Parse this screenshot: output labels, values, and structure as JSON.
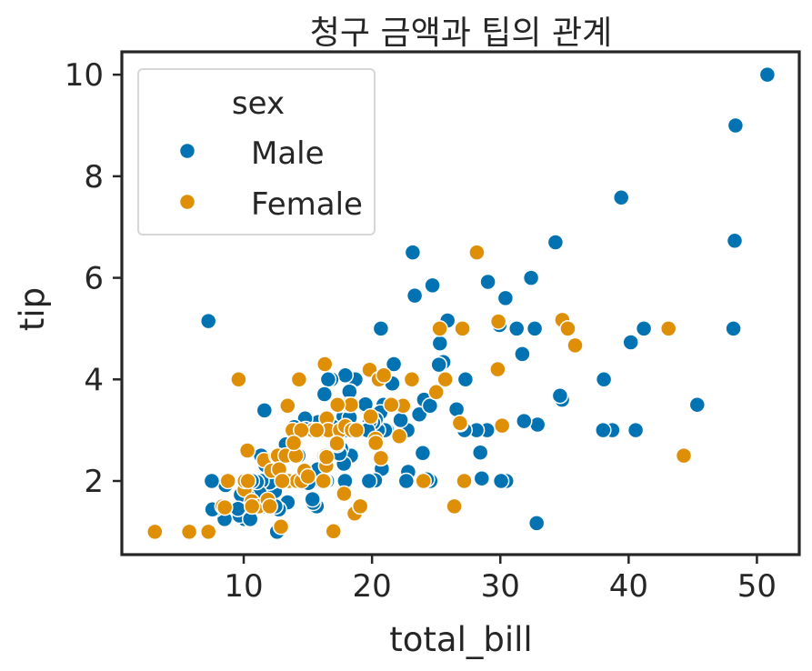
{
  "chart_data": {
    "type": "scatter",
    "title": "청구 금액과 팁의 관계",
    "xlabel": "total_bill",
    "ylabel": "tip",
    "xlim": [
      0.5,
      53.3
    ],
    "ylim": [
      0.55,
      10.45
    ],
    "xticks": [
      10,
      20,
      30,
      40,
      50
    ],
    "yticks": [
      2,
      4,
      6,
      8,
      10
    ],
    "grid": false,
    "legend": {
      "title": "sex",
      "placement": "top-left"
    },
    "series": [
      {
        "name": "Male",
        "color": "#0173b2",
        "points": [
          [
            7.25,
            5.15
          ],
          [
            50.81,
            10.0
          ],
          [
            48.27,
            6.73
          ],
          [
            48.17,
            5.0
          ],
          [
            48.33,
            9.0
          ],
          [
            45.35,
            3.5
          ],
          [
            44.3,
            2.5
          ],
          [
            43.11,
            5.0
          ],
          [
            41.19,
            5.0
          ],
          [
            40.55,
            3.0
          ],
          [
            40.17,
            4.73
          ],
          [
            39.42,
            7.58
          ],
          [
            38.73,
            3.0
          ],
          [
            38.07,
            4.0
          ],
          [
            38.01,
            3.0
          ],
          [
            34.81,
            3.6
          ],
          [
            34.65,
            3.68
          ],
          [
            34.3,
            6.7
          ],
          [
            32.83,
            1.17
          ],
          [
            32.9,
            3.11
          ],
          [
            32.68,
            5.0
          ],
          [
            32.4,
            6.0
          ],
          [
            31.85,
            3.18
          ],
          [
            31.71,
            4.5
          ],
          [
            31.27,
            5.0
          ],
          [
            30.4,
            5.6
          ],
          [
            30.46,
            2.0
          ],
          [
            30.06,
            2.0
          ],
          [
            29.93,
            5.07
          ],
          [
            29.8,
            4.2
          ],
          [
            29.03,
            5.92
          ],
          [
            28.97,
            3.0
          ],
          [
            28.55,
            2.05
          ],
          [
            28.44,
            2.56
          ],
          [
            28.15,
            3.0
          ],
          [
            27.28,
            4.0
          ],
          [
            27.2,
            3.0
          ],
          [
            26.59,
            3.41
          ],
          [
            25.89,
            5.16
          ],
          [
            25.56,
            4.34
          ],
          [
            25.29,
            4.71
          ],
          [
            25.21,
            4.29
          ],
          [
            25.0,
            3.75
          ],
          [
            24.71,
            5.85
          ],
          [
            24.55,
            2.0
          ],
          [
            24.27,
            2.03
          ],
          [
            24.06,
            3.6
          ],
          [
            23.95,
            2.55
          ],
          [
            23.68,
            3.31
          ],
          [
            23.33,
            5.65
          ],
          [
            23.17,
            6.5
          ],
          [
            22.82,
            2.18
          ],
          [
            22.76,
            3.0
          ],
          [
            22.67,
            2.0
          ],
          [
            22.49,
            3.5
          ],
          [
            21.5,
            3.5
          ],
          [
            21.58,
            3.92
          ],
          [
            21.16,
            3.0
          ],
          [
            21.01,
            3.0
          ],
          [
            20.9,
            3.5
          ],
          [
            20.92,
            4.08
          ],
          [
            20.76,
            2.24
          ],
          [
            20.69,
            5.0
          ],
          [
            20.65,
            3.35
          ],
          [
            20.45,
            3.0
          ],
          [
            20.29,
            3.21
          ],
          [
            20.23,
            2.01
          ],
          [
            20.08,
            3.15
          ],
          [
            19.81,
            4.19
          ],
          [
            19.77,
            2.0
          ],
          [
            19.82,
            3.18
          ],
          [
            19.44,
            3.0
          ],
          [
            19.49,
            3.51
          ],
          [
            18.78,
            3.0
          ],
          [
            18.71,
            4.0
          ],
          [
            18.43,
            3.0
          ],
          [
            18.35,
            2.5
          ],
          [
            18.29,
            3.76
          ],
          [
            18.24,
            3.76
          ],
          [
            18.04,
            3.0
          ],
          [
            17.92,
            4.08
          ],
          [
            17.89,
            2.0
          ],
          [
            17.81,
            2.34
          ],
          [
            17.78,
            3.27
          ],
          [
            17.59,
            2.64
          ],
          [
            17.47,
            3.5
          ],
          [
            17.46,
            2.54
          ],
          [
            17.29,
            2.71
          ],
          [
            17.07,
            3.0
          ],
          [
            16.99,
            1.01
          ],
          [
            16.93,
            3.07
          ],
          [
            16.82,
            4.0
          ],
          [
            16.58,
            4.0
          ],
          [
            16.49,
            2.0
          ],
          [
            16.47,
            3.23
          ],
          [
            16.29,
            3.71
          ],
          [
            16.27,
            2.5
          ],
          [
            16.21,
            2.0
          ],
          [
            16.0,
            2.0
          ],
          [
            15.98,
            3.0
          ],
          [
            15.81,
            3.16
          ],
          [
            15.69,
            1.5
          ],
          [
            15.53,
            3.0
          ],
          [
            15.48,
            2.02
          ],
          [
            15.42,
            1.57
          ],
          [
            15.36,
            1.64
          ],
          [
            15.06,
            3.0
          ],
          [
            15.04,
            1.96
          ],
          [
            14.78,
            3.23
          ],
          [
            14.73,
            2.2
          ],
          [
            14.48,
            2.0
          ],
          [
            14.26,
            2.5
          ],
          [
            14.07,
            2.5
          ],
          [
            14.0,
            3.0
          ],
          [
            13.94,
            3.06
          ],
          [
            13.81,
            2.0
          ],
          [
            13.42,
            1.58
          ],
          [
            13.39,
            2.61
          ],
          [
            13.28,
            2.72
          ],
          [
            13.13,
            2.0
          ],
          [
            13.03,
            2.0
          ],
          [
            13.0,
            2.0
          ],
          [
            12.74,
            1.44
          ],
          [
            12.6,
            1.0
          ],
          [
            12.46,
            1.5
          ],
          [
            12.43,
            1.8
          ],
          [
            12.26,
            2.0
          ],
          [
            12.16,
            2.2
          ],
          [
            12.02,
            1.97
          ],
          [
            11.87,
            1.63
          ],
          [
            11.69,
            2.31
          ],
          [
            11.61,
            3.39
          ],
          [
            11.38,
            2.0
          ],
          [
            11.35,
            2.5
          ],
          [
            11.24,
            1.76
          ],
          [
            11.02,
            1.98
          ],
          [
            10.77,
            1.47
          ],
          [
            10.63,
            2.0
          ],
          [
            10.34,
            2.0
          ],
          [
            10.33,
            2.0
          ],
          [
            10.29,
            2.6
          ],
          [
            10.27,
            1.71
          ],
          [
            10.07,
            1.25
          ],
          [
            9.94,
            1.56
          ],
          [
            9.78,
            1.73
          ],
          [
            9.68,
            1.32
          ],
          [
            9.6,
            4.0
          ],
          [
            9.55,
            1.45
          ],
          [
            8.58,
            1.92
          ],
          [
            8.51,
            1.25
          ],
          [
            8.52,
            1.48
          ],
          [
            8.35,
            1.5
          ],
          [
            7.74,
            1.44
          ],
          [
            7.56,
            1.44
          ],
          [
            7.51,
            2.0
          ],
          [
            10.51,
            1.25
          ],
          [
            10.65,
            1.5
          ],
          [
            11.59,
            1.5
          ],
          [
            13.51,
            2.0
          ],
          [
            14.83,
            3.02
          ],
          [
            15.77,
            2.23
          ],
          [
            18.26,
            3.25
          ],
          [
            19.65,
            3.0
          ],
          [
            20.49,
            4.06
          ],
          [
            21.7,
            4.3
          ],
          [
            22.23,
            3.2
          ],
          [
            24.52,
            3.48
          ],
          [
            26.88,
            3.12
          ],
          [
            28.17,
            6.5
          ]
        ]
      },
      {
        "name": "Female",
        "color": "#de8f05",
        "points": [
          [
            3.07,
            1.0
          ],
          [
            5.75,
            1.0
          ],
          [
            7.25,
            1.0
          ],
          [
            8.35,
            1.5
          ],
          [
            8.52,
            1.48
          ],
          [
            8.77,
            2.0
          ],
          [
            9.6,
            4.0
          ],
          [
            10.07,
            1.83
          ],
          [
            10.09,
            2.0
          ],
          [
            10.29,
            2.6
          ],
          [
            10.33,
            2.0
          ],
          [
            10.63,
            1.6
          ],
          [
            11.17,
            1.5
          ],
          [
            11.59,
            2.41
          ],
          [
            12.16,
            2.2
          ],
          [
            12.54,
            2.5
          ],
          [
            12.66,
            2.5
          ],
          [
            12.76,
            2.23
          ],
          [
            12.9,
            1.1
          ],
          [
            13.13,
            2.0
          ],
          [
            13.27,
            2.5
          ],
          [
            13.42,
            3.48
          ],
          [
            13.51,
            2.0
          ],
          [
            14.07,
            2.5
          ],
          [
            14.15,
            2.0
          ],
          [
            14.31,
            4.0
          ],
          [
            14.52,
            2.0
          ],
          [
            14.73,
            2.2
          ],
          [
            15.01,
            2.09
          ],
          [
            15.38,
            3.0
          ],
          [
            15.98,
            3.0
          ],
          [
            16.27,
            2.5
          ],
          [
            16.31,
            2.0
          ],
          [
            16.4,
            2.5
          ],
          [
            16.43,
            2.3
          ],
          [
            16.45,
            2.47
          ],
          [
            16.47,
            3.23
          ],
          [
            16.58,
            3.0
          ],
          [
            16.99,
            1.01
          ],
          [
            17.51,
            3.0
          ],
          [
            17.92,
            3.08
          ],
          [
            18.15,
            3.5
          ],
          [
            18.43,
            3.0
          ],
          [
            18.64,
            1.36
          ],
          [
            18.78,
            3.0
          ],
          [
            19.08,
            1.5
          ],
          [
            19.81,
            4.19
          ],
          [
            20.27,
            2.83
          ],
          [
            20.29,
            2.75
          ],
          [
            20.53,
            4.0
          ],
          [
            20.92,
            4.08
          ],
          [
            22.12,
            2.88
          ],
          [
            22.42,
            3.48
          ],
          [
            23.1,
            4.0
          ],
          [
            24.01,
            2.0
          ],
          [
            25.0,
            3.75
          ],
          [
            25.28,
            5.0
          ],
          [
            26.41,
            1.5
          ],
          [
            27.05,
            5.0
          ],
          [
            28.17,
            6.5
          ],
          [
            29.85,
            5.14
          ],
          [
            30.14,
            3.09
          ],
          [
            34.83,
            5.17
          ],
          [
            35.26,
            5.0
          ],
          [
            35.83,
            4.67
          ],
          [
            43.11,
            5.0
          ],
          [
            44.3,
            2.5
          ],
          [
            16.21,
            2.0
          ],
          [
            13.81,
            3.0
          ],
          [
            11.87,
            1.63
          ],
          [
            15.69,
            3.0
          ],
          [
            19.89,
            3.27
          ],
          [
            18.35,
            3.5
          ],
          [
            20.69,
            2.45
          ],
          [
            13.0,
            2.0
          ],
          [
            17.26,
            2.74
          ],
          [
            14.48,
            3.0
          ],
          [
            17.82,
            1.75
          ],
          [
            26.86,
            3.14
          ],
          [
            25.71,
            4.0
          ],
          [
            17.31,
            3.5
          ],
          [
            29.8,
            4.2
          ],
          [
            12.03,
            1.5
          ],
          [
            16.32,
            4.3
          ],
          [
            27.18,
            2.0
          ],
          [
            13.9,
            2.75
          ],
          [
            10.65,
            1.5
          ],
          [
            21.5,
            3.5
          ]
        ]
      }
    ]
  }
}
